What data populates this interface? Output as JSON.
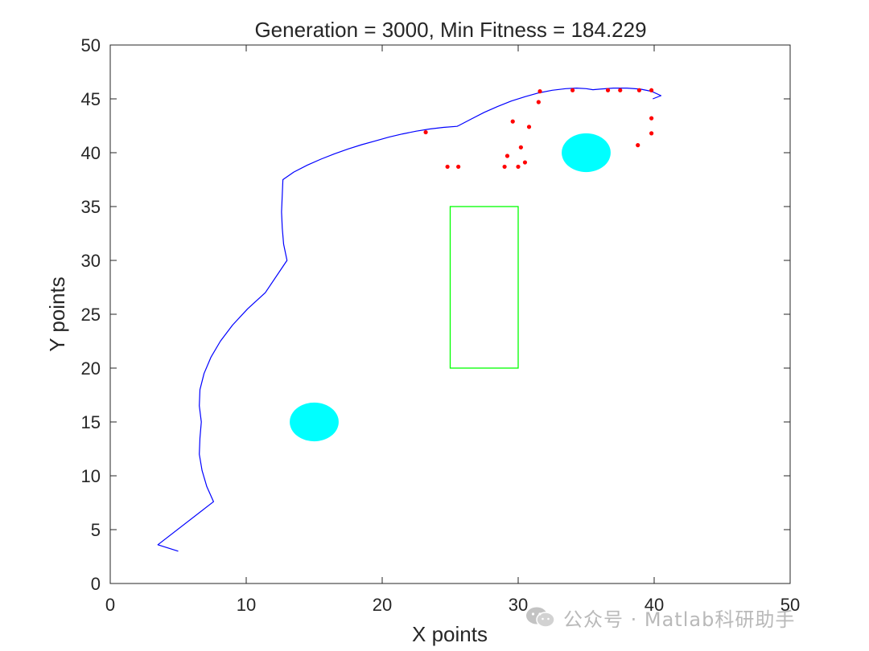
{
  "chart_data": {
    "type": "scatter",
    "title": "Generation = 3000, Min Fitness = 184.229",
    "xlabel": "X points",
    "ylabel": "Y points",
    "xlim": [
      0,
      50
    ],
    "ylim": [
      0,
      50
    ],
    "xticks": [
      0,
      10,
      20,
      30,
      40,
      50
    ],
    "yticks": [
      0,
      5,
      10,
      15,
      20,
      25,
      30,
      35,
      40,
      45,
      50
    ],
    "xtick_labels": [
      "0",
      "10",
      "20",
      "30",
      "40",
      "50"
    ],
    "ytick_labels": [
      "0",
      "5",
      "10",
      "15",
      "20",
      "25",
      "30",
      "35",
      "40",
      "45",
      "50"
    ],
    "grid": false,
    "legend": "none",
    "path": {
      "color": "#0000ff",
      "points": [
        [
          5.0,
          3.0
        ],
        [
          3.5,
          3.6
        ],
        [
          7.6,
          7.6
        ],
        [
          7.1,
          9.0
        ],
        [
          6.75,
          10.5
        ],
        [
          6.55,
          12.0
        ],
        [
          6.6,
          13.5
        ],
        [
          6.7,
          15.0
        ],
        [
          6.55,
          16.5
        ],
        [
          6.6,
          18.0
        ],
        [
          6.9,
          19.5
        ],
        [
          7.4,
          21.0
        ],
        [
          8.1,
          22.5
        ],
        [
          9.0,
          24.0
        ],
        [
          10.1,
          25.5
        ],
        [
          11.4,
          27.0
        ],
        [
          13.0,
          30.0
        ],
        [
          12.75,
          31.5
        ],
        [
          12.65,
          33.0
        ],
        [
          12.6,
          34.5
        ],
        [
          12.7,
          37.5
        ],
        [
          13.5,
          38.2
        ],
        [
          14.5,
          38.85
        ],
        [
          15.5,
          39.4
        ],
        [
          16.5,
          39.9
        ],
        [
          17.5,
          40.35
        ],
        [
          18.5,
          40.75
        ],
        [
          19.5,
          41.1
        ],
        [
          20.5,
          41.45
        ],
        [
          21.5,
          41.75
        ],
        [
          22.5,
          42.0
        ],
        [
          23.5,
          42.2
        ],
        [
          24.5,
          42.35
        ],
        [
          25.5,
          42.45
        ],
        [
          25.6,
          42.5
        ],
        [
          26.5,
          43.1
        ],
        [
          27.5,
          43.75
        ],
        [
          28.5,
          44.3
        ],
        [
          29.5,
          44.8
        ],
        [
          30.5,
          45.2
        ],
        [
          31.5,
          45.55
        ],
        [
          32.5,
          45.8
        ],
        [
          33.5,
          45.95
        ],
        [
          34.3,
          46.0
        ],
        [
          35.0,
          45.95
        ],
        [
          35.5,
          45.85
        ],
        [
          36.0,
          45.9
        ],
        [
          37.0,
          46.0
        ],
        [
          38.0,
          46.0
        ],
        [
          39.0,
          45.9
        ],
        [
          39.8,
          45.7
        ],
        [
          40.5,
          45.3
        ],
        [
          39.9,
          45.0
        ]
      ]
    },
    "points": {
      "color": "#ff0000",
      "values": [
        [
          23.2,
          41.9
        ],
        [
          24.8,
          38.7
        ],
        [
          25.6,
          38.7
        ],
        [
          29.0,
          38.7
        ],
        [
          29.2,
          39.7
        ],
        [
          30.0,
          38.7
        ],
        [
          30.5,
          39.1
        ],
        [
          30.2,
          40.5
        ],
        [
          29.6,
          42.9
        ],
        [
          30.8,
          42.4
        ],
        [
          31.5,
          44.7
        ],
        [
          31.6,
          45.7
        ],
        [
          34.0,
          45.8
        ],
        [
          36.6,
          45.8
        ],
        [
          37.5,
          45.8
        ],
        [
          38.9,
          45.8
        ],
        [
          39.8,
          45.8
        ],
        [
          39.8,
          43.2
        ],
        [
          39.8,
          41.8
        ],
        [
          38.8,
          40.7
        ]
      ]
    },
    "obstacles": {
      "circles": [
        {
          "cx": 15,
          "cy": 15,
          "r": 1.8,
          "color": "#00ffff"
        },
        {
          "cx": 35,
          "cy": 40,
          "r": 1.8,
          "color": "#00ffff"
        }
      ],
      "rectangle": {
        "x0": 25,
        "x1": 30,
        "y0": 20,
        "y1": 35,
        "color": "#00ff00"
      }
    }
  },
  "watermark": {
    "text": "公众号 · Matlab科研助手",
    "icon": "wechat-icon"
  }
}
